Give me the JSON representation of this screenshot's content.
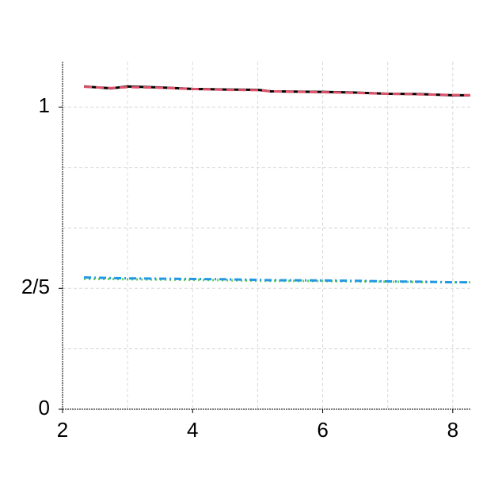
{
  "chart_data": {
    "type": "line",
    "x": [
      2.33,
      2.75,
      3,
      3.5,
      4,
      4.5,
      5,
      5.2,
      6,
      6.5,
      7,
      7.5,
      8,
      8.27
    ],
    "series": [
      {
        "color": "#000000",
        "dash": "solid",
        "values": [
          1.068,
          1.062,
          1.068,
          1.065,
          1.06,
          1.058,
          1.057,
          1.052,
          1.05,
          1.048,
          1.044,
          1.043,
          1.039,
          1.039
        ]
      },
      {
        "color": "#df536b",
        "dash": "dashed",
        "values": [
          1.067,
          1.063,
          1.066,
          1.064,
          1.06,
          1.057,
          1.056,
          1.052,
          1.049,
          1.047,
          1.044,
          1.042,
          1.04,
          1.039
        ]
      },
      {
        "color": "#61d04f",
        "dash": "dotted",
        "values": [
          0.431,
          0.431,
          0.43,
          0.429,
          0.428,
          0.427,
          0.425,
          0.425,
          0.424,
          0.423,
          0.422,
          0.421,
          0.42,
          0.42
        ]
      },
      {
        "color": "#2297e6",
        "dash": "dashdot",
        "values": [
          0.436,
          0.434,
          0.433,
          0.432,
          0.431,
          0.43,
          0.428,
          0.427,
          0.426,
          0.425,
          0.423,
          0.422,
          0.42,
          0.42
        ]
      }
    ],
    "xlim": [
      2,
      8.27
    ],
    "ylim": [
      0,
      1.15
    ],
    "xticks": [
      2,
      4,
      6,
      8
    ],
    "yticks": [
      0,
      {
        "value": 0.4,
        "label": "2/5"
      },
      1
    ],
    "xgrid": [
      2,
      3,
      4,
      5,
      6,
      7,
      8
    ],
    "ygrid": [
      0.2,
      0.4,
      0.6,
      0.8,
      1
    ],
    "grid": true
  }
}
